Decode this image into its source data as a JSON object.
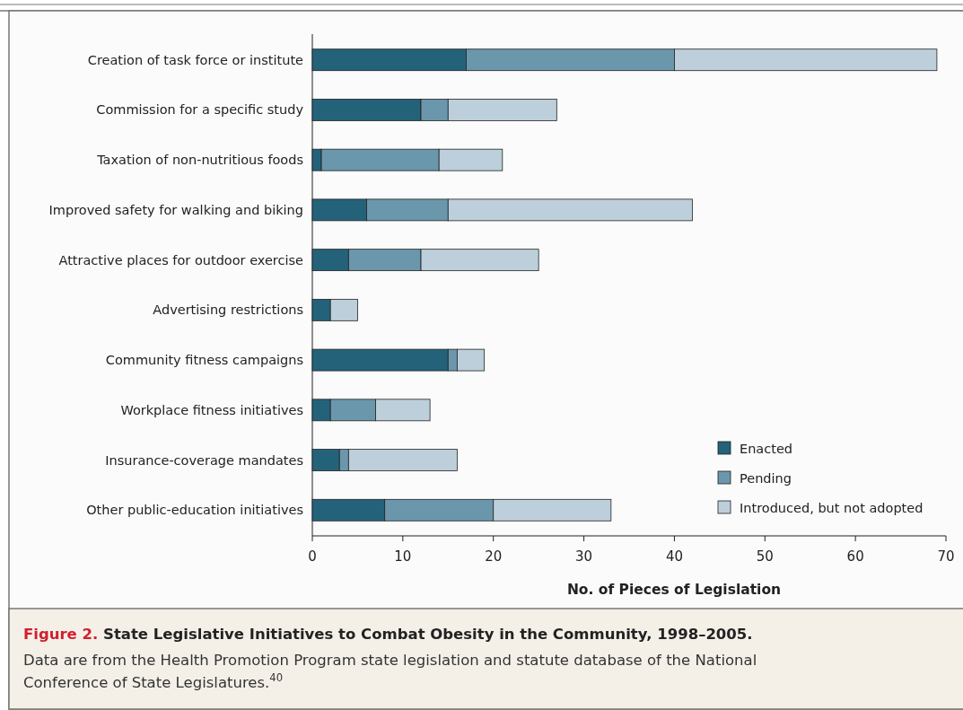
{
  "chart_data": {
    "type": "bar",
    "orientation": "horizontal",
    "stacked": true,
    "title": "Figure 2. State Legislative Initiatives to Combat Obesity in the Community, 1998–2005.",
    "annotations": [
      "Data are from the Health Promotion Program state legislation and statute database of the National Conference of State Legislatures.$^{40}$"
    ],
    "xlabel": "No. of Pieces of Legislation",
    "categories": [
      "Creation of task force or institute",
      "Commission for a specific study",
      "Taxation of non-nutritious foods",
      "Improved safety for walking and biking",
      "Attractive places for outdoor exercise",
      "Advertising restrictions",
      "Community fitness campaigns",
      "Workplace fitness initiatives",
      "Insurance-coverage mandates",
      "Other public-education initiatives"
    ],
    "series": [
      {
        "name": "Enacted",
        "color": "#24627a",
        "values": [
          17,
          12,
          1,
          6,
          4,
          2,
          15,
          2,
          3,
          8
        ]
      },
      {
        "name": "Pending",
        "color": "#6a97ab",
        "values": [
          23,
          3,
          13,
          9,
          8,
          0,
          1,
          5,
          1,
          12
        ]
      },
      {
        "name": "Introduced, but not adopted",
        "color": "#bccfda",
        "values": [
          29,
          12,
          7,
          27,
          13,
          3,
          3,
          6,
          12,
          13
        ]
      }
    ],
    "xlim": [
      0,
      70
    ],
    "xticks": [
      0,
      10,
      20,
      30,
      40,
      50,
      60,
      70
    ],
    "legend": "bottom right"
  }
}
